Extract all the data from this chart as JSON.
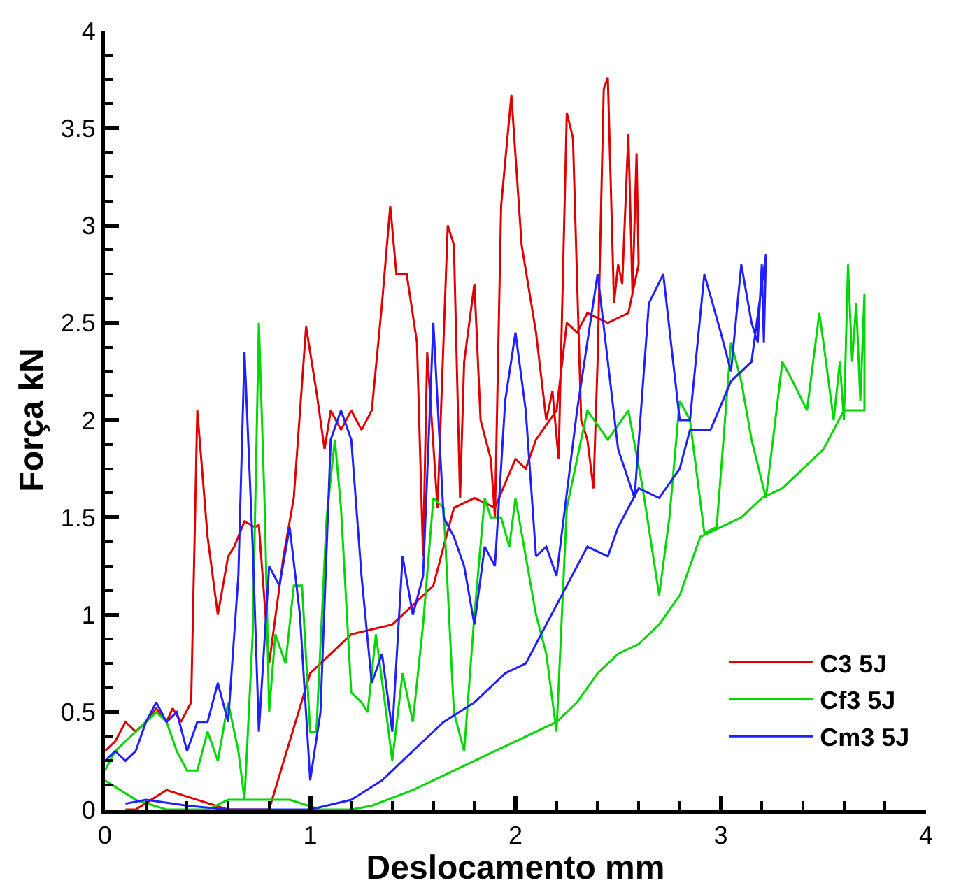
{
  "chart_data": {
    "type": "line",
    "xlabel": "Deslocamento mm",
    "ylabel": "Força kN",
    "xlim": [
      0,
      4
    ],
    "xticks": [
      0,
      1,
      2,
      3,
      4
    ],
    "ylim": [
      0,
      4
    ],
    "yticks": [
      0,
      0.5,
      1,
      1.5,
      2,
      2.5,
      3,
      3.5,
      4
    ],
    "legend": "bottom right",
    "marker": "none",
    "line_style": "solid",
    "series": [
      {
        "name": "C3 5J",
        "color": "#e00000",
        "x": [
          0,
          0.05,
          0.1,
          0.15,
          0.2,
          0.25,
          0.3,
          0.33,
          0.37,
          0.42,
          0.45,
          0.5,
          0.55,
          0.6,
          0.63,
          0.68,
          0.73,
          0.75,
          0.8,
          0.87,
          0.92,
          0.98,
          1.03,
          1.07,
          1.1,
          1.15,
          1.2,
          1.25,
          1.3,
          1.35,
          1.39,
          1.42,
          1.47,
          1.52,
          1.55,
          1.57,
          1.62,
          1.67,
          1.7,
          1.73,
          1.75,
          1.8,
          1.83,
          1.88,
          1.9,
          1.93,
          1.98,
          2.03,
          2.1,
          2.15,
          2.18,
          2.21,
          2.25,
          2.28,
          2.32,
          2.35,
          2.38,
          2.4,
          2.43,
          2.45,
          2.48,
          2.5,
          2.52,
          2.55,
          2.57,
          2.59,
          2.6,
          2.55,
          2.45,
          2.35,
          2.3,
          2.25,
          2.2,
          2.1,
          2.05,
          2.0,
          1.9,
          1.8,
          1.7,
          1.6,
          1.5,
          1.4,
          1.2,
          1.0,
          0.8,
          0.6,
          0.45,
          0.3,
          0.15,
          0.1
        ],
        "values": [
          0.3,
          0.35,
          0.45,
          0.4,
          0.45,
          0.52,
          0.45,
          0.52,
          0.45,
          0.55,
          2.05,
          1.4,
          1.0,
          1.3,
          1.35,
          1.48,
          1.45,
          1.46,
          0.75,
          1.3,
          1.6,
          2.48,
          2.15,
          1.85,
          2.05,
          1.95,
          2.05,
          1.95,
          2.05,
          2.6,
          3.1,
          2.75,
          2.75,
          2.4,
          1.3,
          2.35,
          1.55,
          3.0,
          2.9,
          1.6,
          2.3,
          2.7,
          2.0,
          1.8,
          1.5,
          3.1,
          3.67,
          2.9,
          2.45,
          2.0,
          2.15,
          1.8,
          3.58,
          3.45,
          2.0,
          1.9,
          1.65,
          2.3,
          3.7,
          3.76,
          2.6,
          2.8,
          2.7,
          3.47,
          2.65,
          3.37,
          2.8,
          2.55,
          2.5,
          2.55,
          2.45,
          2.5,
          2.05,
          1.9,
          1.75,
          1.8,
          1.55,
          1.6,
          1.55,
          1.15,
          1.05,
          0.95,
          0.9,
          0.7,
          0,
          0,
          0.05,
          0.1,
          0,
          0
        ]
      },
      {
        "name": "Cf3 5J",
        "color": "#00d800",
        "x": [
          0,
          0.05,
          0.1,
          0.2,
          0.25,
          0.3,
          0.35,
          0.4,
          0.45,
          0.5,
          0.55,
          0.6,
          0.65,
          0.68,
          0.72,
          0.75,
          0.78,
          0.8,
          0.83,
          0.88,
          0.92,
          0.96,
          1.0,
          1.03,
          1.08,
          1.12,
          1.15,
          1.2,
          1.25,
          1.28,
          1.32,
          1.37,
          1.4,
          1.45,
          1.5,
          1.55,
          1.6,
          1.65,
          1.7,
          1.75,
          1.8,
          1.85,
          1.88,
          1.93,
          1.97,
          2.0,
          2.05,
          2.1,
          2.15,
          2.2,
          2.25,
          2.35,
          2.45,
          2.55,
          2.62,
          2.7,
          2.75,
          2.8,
          2.85,
          2.92,
          2.98,
          3.05,
          3.1,
          3.15,
          3.22,
          3.3,
          3.35,
          3.42,
          3.48,
          3.5,
          3.55,
          3.58,
          3.6,
          3.62,
          3.64,
          3.66,
          3.68,
          3.7,
          3.7,
          3.6,
          3.5,
          3.4,
          3.3,
          3.2,
          3.1,
          3.0,
          2.9,
          2.8,
          2.7,
          2.6,
          2.5,
          2.4,
          2.3,
          2.2,
          2.1,
          2.0,
          1.9,
          1.7,
          1.5,
          1.3,
          1.2,
          1.05,
          0.9,
          0.8,
          0.6,
          0.5,
          0.3,
          0.15,
          0
        ],
        "values": [
          0.2,
          0.3,
          0.35,
          0.45,
          0.5,
          0.45,
          0.3,
          0.2,
          0.2,
          0.4,
          0.25,
          0.55,
          0.3,
          0.05,
          0.9,
          2.5,
          1.5,
          0.5,
          0.9,
          0.75,
          1.15,
          1.15,
          0.4,
          0.4,
          1.5,
          1.9,
          1.55,
          0.6,
          0.55,
          0.5,
          0.9,
          0.5,
          0.25,
          0.7,
          0.45,
          0.95,
          1.6,
          1.55,
          0.5,
          0.3,
          1.0,
          1.6,
          1.5,
          1.5,
          1.35,
          1.6,
          1.3,
          1.0,
          0.8,
          0.4,
          1.55,
          2.05,
          1.9,
          2.05,
          1.65,
          1.1,
          1.5,
          2.1,
          2.0,
          1.42,
          1.45,
          2.4,
          2.2,
          1.9,
          1.6,
          2.3,
          2.2,
          2.05,
          2.55,
          2.4,
          2.0,
          2.3,
          2.0,
          2.8,
          2.3,
          2.6,
          2.1,
          2.65,
          2.05,
          2.05,
          1.85,
          1.75,
          1.65,
          1.6,
          1.5,
          1.45,
          1.4,
          1.1,
          0.95,
          0.85,
          0.8,
          0.7,
          0.55,
          0.45,
          0.4,
          0.35,
          0.3,
          0.2,
          0.1,
          0.02,
          0,
          0,
          0.05,
          0.05,
          0.05,
          0,
          0,
          0.05,
          0.15
        ]
      },
      {
        "name": "Cm3 5J",
        "color": "#2020ff",
        "x": [
          0,
          0.05,
          0.1,
          0.15,
          0.2,
          0.25,
          0.3,
          0.35,
          0.4,
          0.45,
          0.5,
          0.55,
          0.6,
          0.65,
          0.68,
          0.72,
          0.75,
          0.8,
          0.85,
          0.9,
          0.95,
          1.0,
          1.05,
          1.1,
          1.15,
          1.2,
          1.25,
          1.3,
          1.35,
          1.4,
          1.45,
          1.5,
          1.55,
          1.6,
          1.65,
          1.7,
          1.75,
          1.8,
          1.85,
          1.9,
          1.95,
          2.0,
          2.05,
          2.1,
          2.15,
          2.2,
          2.3,
          2.4,
          2.5,
          2.58,
          2.65,
          2.72,
          2.8,
          2.85,
          2.92,
          3.0,
          3.05,
          3.1,
          3.15,
          3.18,
          3.2,
          3.21,
          3.22,
          3.15,
          3.05,
          2.95,
          2.85,
          2.8,
          2.7,
          2.6,
          2.5,
          2.45,
          2.35,
          2.2,
          2.05,
          1.95,
          1.8,
          1.65,
          1.5,
          1.35,
          1.2,
          1.0,
          0.6,
          0.4,
          0.2,
          0.1
        ],
        "values": [
          0.25,
          0.3,
          0.25,
          0.3,
          0.45,
          0.55,
          0.45,
          0.5,
          0.3,
          0.45,
          0.45,
          0.65,
          0.45,
          1.2,
          2.35,
          1.35,
          0.4,
          1.25,
          1.15,
          1.45,
          1.0,
          0.15,
          0.5,
          1.9,
          2.05,
          1.9,
          1.2,
          0.65,
          0.8,
          0.4,
          1.3,
          1.0,
          1.2,
          2.5,
          1.5,
          1.4,
          1.25,
          0.95,
          1.35,
          1.25,
          2.1,
          2.45,
          2.05,
          1.3,
          1.35,
          1.2,
          2.05,
          2.75,
          1.85,
          1.6,
          2.6,
          2.75,
          2.0,
          2.0,
          2.75,
          2.45,
          2.25,
          2.8,
          2.5,
          2.4,
          2.8,
          2.4,
          2.85,
          2.3,
          2.2,
          1.95,
          1.95,
          1.75,
          1.6,
          1.65,
          1.45,
          1.3,
          1.35,
          1.05,
          0.75,
          0.7,
          0.55,
          0.45,
          0.3,
          0.15,
          0.05,
          0,
          0,
          0.02,
          0.05,
          0.03
        ]
      }
    ]
  }
}
